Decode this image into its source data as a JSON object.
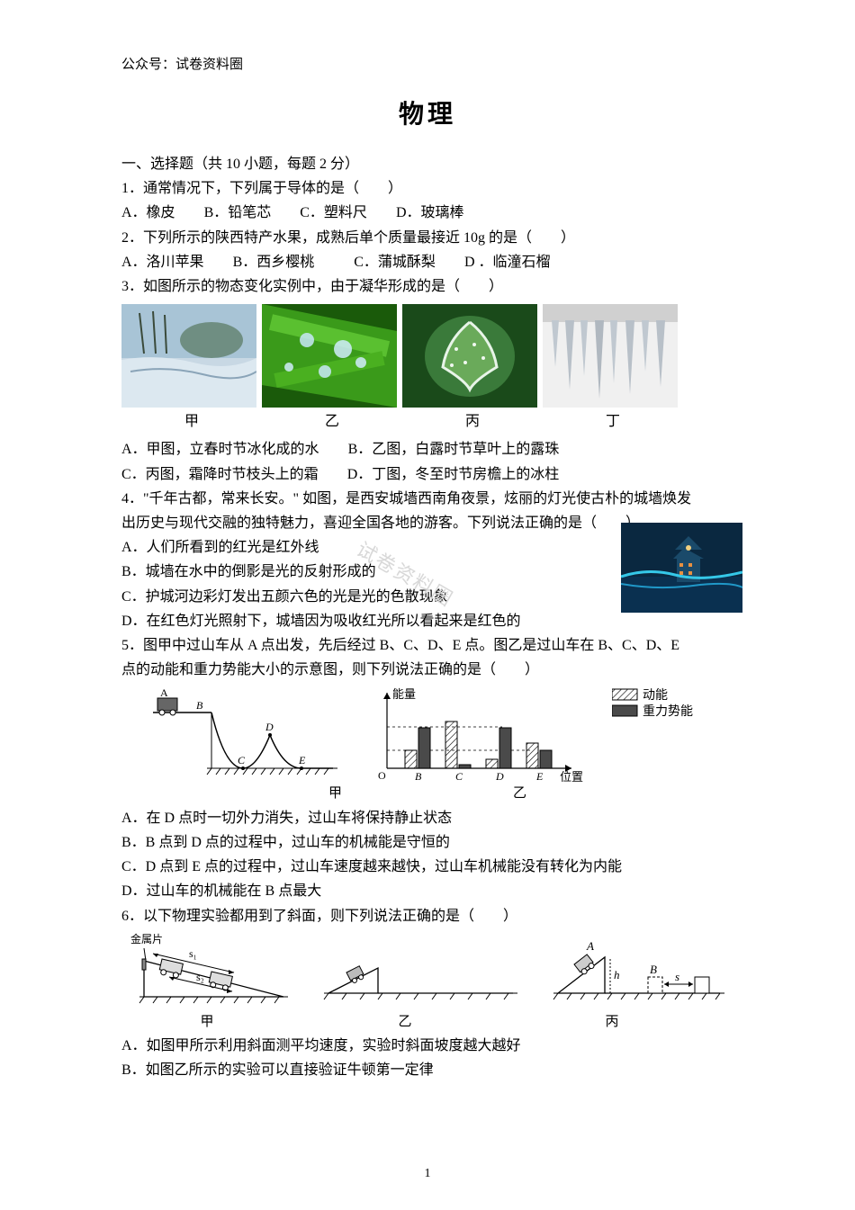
{
  "header": "公众号：试卷资料圈",
  "title": "物理",
  "section": "一、选择题（共 10 小题，每题 2 分）",
  "q1": {
    "stem": "1．通常情况下，下列属于导体的是（　　）",
    "opts": {
      "A": "A．橡皮",
      "B": "B．铅笔芯",
      "C": "C．塑料尺",
      "D": "D．玻璃棒"
    }
  },
  "q2": {
    "stem": "2．下列所示的陕西特产水果，成熟后单个质量最接近 10g 的是（　　）",
    "opts": {
      "A": "A．洛川苹果",
      "B": "B．西乡樱桃",
      "C": "C．蒲城酥梨",
      "D": "D ．临潼石榴"
    }
  },
  "q3": {
    "stem": "3．如图所示的物态变化实例中，由于凝华形成的是（　　）",
    "caps": {
      "a": "甲",
      "b": "乙",
      "c": "丙",
      "d": "丁"
    },
    "opts": {
      "A": "A．甲图，立春时节冰化成的水",
      "B": "B．乙图，白露时节草叶上的露珠",
      "C": "C．丙图，霜降时节枝头上的霜",
      "D": "D．丁图，冬至时节房檐上的冰柱"
    },
    "imgs": {
      "a": {
        "bg": "#9fb8c8",
        "type": "river_ice"
      },
      "b": {
        "bg": "#2a7a1a",
        "type": "leaf_dew"
      },
      "c": {
        "bg": "#2d6b2d",
        "type": "leaf_frost"
      },
      "d": {
        "bg": "#e8e8e8",
        "type": "icicles"
      }
    }
  },
  "q4": {
    "stem1": "4．\"千年古都，常来长安。\" 如图，是西安城墙西南角夜景，炫丽的灯光使古朴的城墙焕发",
    "stem2": "出历史与现代交融的独特魅力，喜迎全国各地的游客。下列说法正确的是（　　）",
    "opts": {
      "A": "A．人们所看到的红光是红外线",
      "B": "B．城墙在水中的倒影是光的反射形成的",
      "C": "C．护城河边彩灯发出五颜六色的光是光的色散现象",
      "D": "D．在红色灯光照射下，城墙因为吸收红光所以看起来是红色的"
    },
    "img": {
      "sky": "#0a2840",
      "light": "#35c8e8",
      "warm": "#e89040"
    }
  },
  "q5": {
    "stem1": "5．图甲中过山车从 A 点出发，先后经过 B、C、D、E 点。图乙是过山车在 B、C、D、E",
    "stem2": "点的动能和重力势能大小的示意图，则下列说法正确的是（　　）",
    "caps": {
      "a": "甲",
      "b": "乙"
    },
    "legend": {
      "ke": "动能",
      "pe": "重力势能"
    },
    "chart": {
      "axis_y": "能量",
      "axis_x": "位置",
      "origin": "O",
      "labels": [
        "B",
        "C",
        "D",
        "E"
      ],
      "ke": [
        20,
        52,
        10,
        28
      ],
      "pe": [
        45,
        4,
        45,
        20
      ],
      "ke_pattern": "#ffffff",
      "ke_stroke": "#000000",
      "pe_fill": "#4a4a4a"
    },
    "opts": {
      "A": "A．在 D 点时一切外力消失，过山车将保持静止状态",
      "B": "B．B 点到 D 点的过程中，过山车的机械能是守恒的",
      "C": "C．D 点到 E 点的过程中，过山车速度越来越快，过山车机械能没有转化为内能",
      "D": "D．过山车的机械能在 B 点最大"
    }
  },
  "q6": {
    "stem": "6．以下物理实验都用到了斜面，则下列说法正确的是（　　）",
    "caps": {
      "a": "甲",
      "b": "乙",
      "c": "丙"
    },
    "labels": {
      "metal": "金属片",
      "s1": "s₁",
      "s2": "s₂",
      "A": "A",
      "B": "B",
      "h": "h",
      "s": "s"
    },
    "opts": {
      "A": "A．如图甲所示利用斜面测平均速度，实验时斜面坡度越大越好",
      "B": "B．如图乙所示的实验可以直接验证牛顿第一定律"
    }
  },
  "pagenum": "1",
  "watermark": "试卷资料圈"
}
